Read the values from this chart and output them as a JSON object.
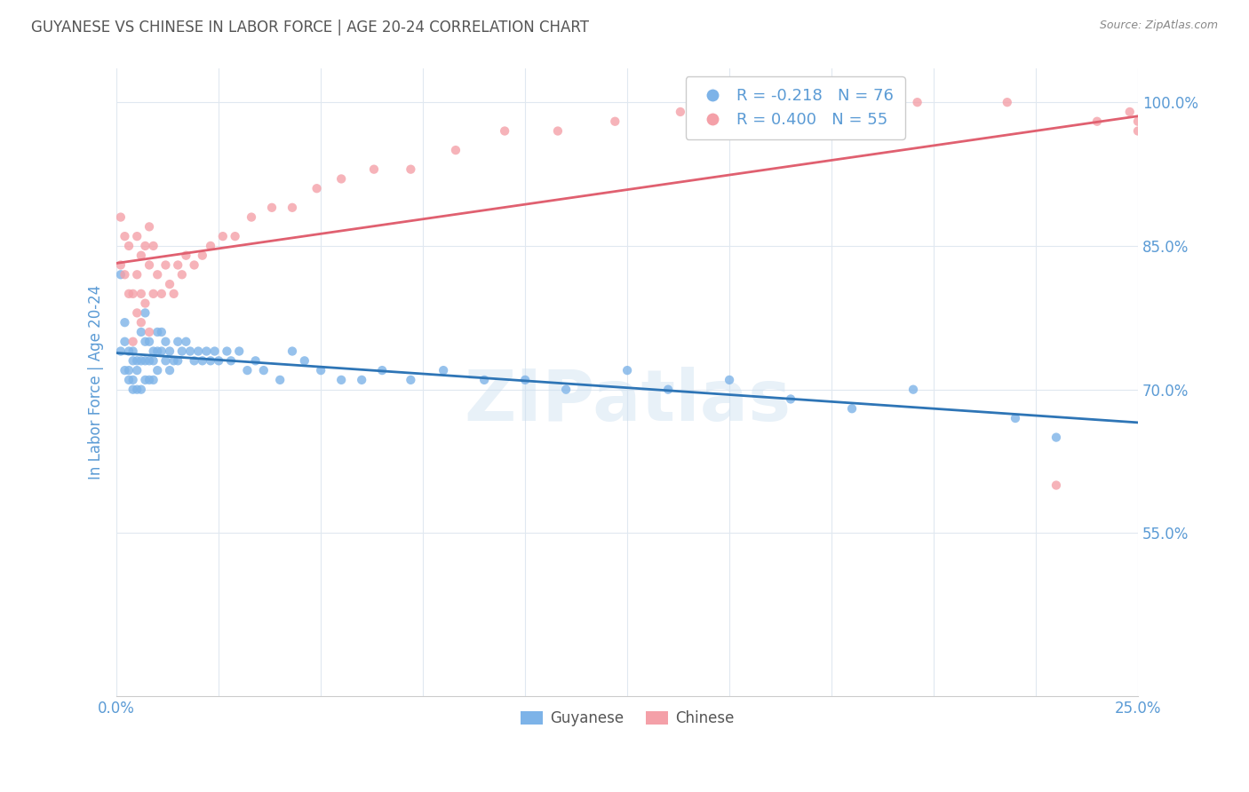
{
  "title": "GUYANESE VS CHINESE IN LABOR FORCE | AGE 20-24 CORRELATION CHART",
  "source": "Source: ZipAtlas.com",
  "ylabel": "In Labor Force | Age 20-24",
  "xmin": 0.0,
  "xmax": 0.25,
  "ymin": 0.38,
  "ymax": 1.035,
  "y_ticks": [
    0.55,
    0.7,
    0.85,
    1.0
  ],
  "y_tick_labels": [
    "55.0%",
    "70.0%",
    "85.0%",
    "100.0%"
  ],
  "guyanese_color": "#7db3e8",
  "chinese_color": "#f4a0a8",
  "trend_guyanese_color": "#2e75b6",
  "trend_chinese_color": "#e06070",
  "legend_r_guyanese": "R = -0.218",
  "legend_n_guyanese": "N = 76",
  "legend_r_chinese": "R = 0.400",
  "legend_n_chinese": "N = 55",
  "watermark": "ZIPatlas",
  "background_color": "#ffffff",
  "grid_color": "#e0e8f0",
  "title_color": "#555555",
  "axis_label_color": "#5b9bd5",
  "guyanese_x": [
    0.001,
    0.001,
    0.002,
    0.002,
    0.002,
    0.003,
    0.003,
    0.003,
    0.004,
    0.004,
    0.004,
    0.004,
    0.005,
    0.005,
    0.005,
    0.006,
    0.006,
    0.006,
    0.007,
    0.007,
    0.007,
    0.007,
    0.008,
    0.008,
    0.008,
    0.009,
    0.009,
    0.009,
    0.01,
    0.01,
    0.01,
    0.011,
    0.011,
    0.012,
    0.012,
    0.013,
    0.013,
    0.014,
    0.015,
    0.015,
    0.016,
    0.017,
    0.018,
    0.019,
    0.02,
    0.021,
    0.022,
    0.023,
    0.024,
    0.025,
    0.027,
    0.028,
    0.03,
    0.032,
    0.034,
    0.036,
    0.04,
    0.043,
    0.046,
    0.05,
    0.055,
    0.06,
    0.065,
    0.072,
    0.08,
    0.09,
    0.1,
    0.11,
    0.125,
    0.135,
    0.15,
    0.165,
    0.18,
    0.195,
    0.22,
    0.23
  ],
  "guyanese_y": [
    0.74,
    0.82,
    0.75,
    0.72,
    0.77,
    0.74,
    0.72,
    0.71,
    0.74,
    0.73,
    0.71,
    0.7,
    0.73,
    0.72,
    0.7,
    0.76,
    0.73,
    0.7,
    0.78,
    0.75,
    0.73,
    0.71,
    0.75,
    0.73,
    0.71,
    0.74,
    0.73,
    0.71,
    0.76,
    0.74,
    0.72,
    0.76,
    0.74,
    0.75,
    0.73,
    0.74,
    0.72,
    0.73,
    0.75,
    0.73,
    0.74,
    0.75,
    0.74,
    0.73,
    0.74,
    0.73,
    0.74,
    0.73,
    0.74,
    0.73,
    0.74,
    0.73,
    0.74,
    0.72,
    0.73,
    0.72,
    0.71,
    0.74,
    0.73,
    0.72,
    0.71,
    0.71,
    0.72,
    0.71,
    0.72,
    0.71,
    0.71,
    0.7,
    0.72,
    0.7,
    0.71,
    0.69,
    0.68,
    0.7,
    0.67,
    0.65
  ],
  "chinese_x": [
    0.001,
    0.001,
    0.002,
    0.002,
    0.003,
    0.003,
    0.004,
    0.004,
    0.005,
    0.005,
    0.005,
    0.006,
    0.006,
    0.006,
    0.007,
    0.007,
    0.008,
    0.008,
    0.008,
    0.009,
    0.009,
    0.01,
    0.011,
    0.012,
    0.013,
    0.014,
    0.015,
    0.016,
    0.017,
    0.019,
    0.021,
    0.023,
    0.026,
    0.029,
    0.033,
    0.038,
    0.043,
    0.049,
    0.055,
    0.063,
    0.072,
    0.083,
    0.095,
    0.108,
    0.122,
    0.138,
    0.156,
    0.175,
    0.196,
    0.218,
    0.23,
    0.24,
    0.248,
    0.25,
    0.25
  ],
  "chinese_y": [
    0.83,
    0.88,
    0.82,
    0.86,
    0.8,
    0.85,
    0.75,
    0.8,
    0.78,
    0.82,
    0.86,
    0.8,
    0.77,
    0.84,
    0.79,
    0.85,
    0.76,
    0.83,
    0.87,
    0.8,
    0.85,
    0.82,
    0.8,
    0.83,
    0.81,
    0.8,
    0.83,
    0.82,
    0.84,
    0.83,
    0.84,
    0.85,
    0.86,
    0.86,
    0.88,
    0.89,
    0.89,
    0.91,
    0.92,
    0.93,
    0.93,
    0.95,
    0.97,
    0.97,
    0.98,
    0.99,
    0.99,
    1.0,
    1.0,
    1.0,
    0.6,
    0.98,
    0.99,
    0.97,
    0.98
  ]
}
